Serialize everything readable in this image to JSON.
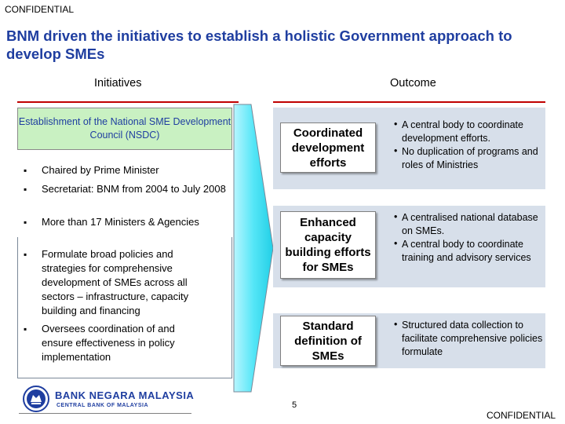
{
  "confidential_top": "CONFIDENTIAL",
  "title": "BNM driven the initiatives to establish a holistic Government approach to develop SMEs",
  "initiatives": {
    "heading": "Initiatives",
    "box": "Establishment of the National SME Development Council (NSDC)",
    "bullets": [
      "Chaired by Prime Minister",
      "Secretariat: BNM from 2004 to July 2008",
      "More than 17 Ministers & Agencies",
      "Formulate broad policies and strategies for comprehensive development of SMEs across all sectors – infrastructure, capacity building and financing",
      "Oversees coordination of and ensure effectiveness in policy implementation"
    ]
  },
  "outcome": {
    "heading": "Outcome",
    "rows": [
      {
        "label": "Coordinated development efforts",
        "points": [
          "A central body to coordinate development efforts.",
          "No duplication of programs and roles of Ministries"
        ]
      },
      {
        "label": "Enhanced capacity building efforts for SMEs",
        "points": [
          "A centralised national database on SMEs.",
          "A central body to coordinate training and advisory services"
        ]
      },
      {
        "label": "Standard definition of SMEs",
        "points": [
          "Structured data collection to facilitate comprehensive policies formulate"
        ]
      }
    ]
  },
  "footer": {
    "bank_name": "BANK NEGARA MALAYSIA",
    "bank_sub": "CENTRAL BANK OF MALAYSIA",
    "page_number": "5",
    "confidential_bottom": "CONFIDENTIAL"
  },
  "colors": {
    "title": "#1f3ea0",
    "rule": "#c00000",
    "nsdc_box": "#c9f1c2",
    "outcome_band": "#d7dfea",
    "arrow": "#31e0f2"
  }
}
